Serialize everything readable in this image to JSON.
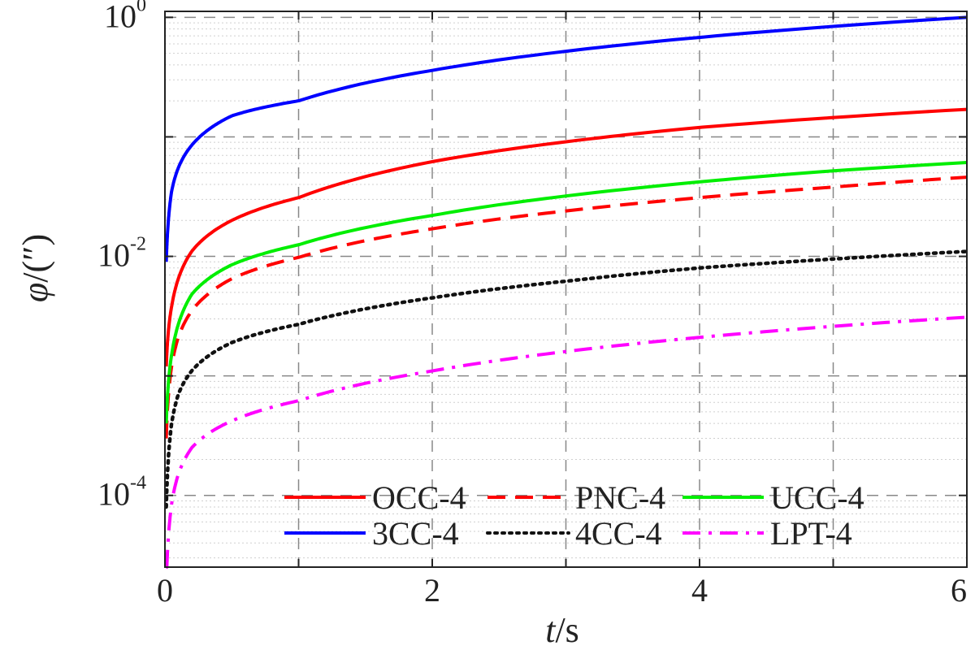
{
  "chart_data": {
    "type": "line",
    "xlabel_var": "t",
    "xlabel_unit": "/s",
    "ylabel_var": "φ",
    "ylabel_unit": "/(″)",
    "xlim": [
      0,
      6
    ],
    "ylim_log10": [
      -4.6,
      0.05
    ],
    "y_scale": "log",
    "grid": true,
    "legend_position": "bottom",
    "x_ticks": [
      "0",
      "2",
      "4",
      "6"
    ],
    "y_ticks": [
      {
        "base": "10",
        "exp": "0"
      },
      {
        "base": "10",
        "exp": "-2"
      },
      {
        "base": "10",
        "exp": "-4"
      }
    ],
    "x": [
      0.01,
      0.05,
      0.1,
      0.2,
      0.5,
      1,
      2,
      3,
      4,
      5,
      6
    ],
    "series": [
      {
        "name": "OCC-4",
        "color": "#ff0000",
        "dash": "solid",
        "values": [
          0.0012,
          0.0038,
          0.0065,
          0.011,
          0.02,
          0.031,
          0.062,
          0.091,
          0.12,
          0.145,
          0.17
        ]
      },
      {
        "name": "PNC-4",
        "color": "#ff0000",
        "dash": "dashed",
        "values": [
          0.0003,
          0.0012,
          0.0021,
          0.0035,
          0.0065,
          0.0098,
          0.017,
          0.024,
          0.031,
          0.038,
          0.046
        ]
      },
      {
        "name": "UCC-4",
        "color": "#00ee00",
        "dash": "solid",
        "values": [
          0.0004,
          0.0015,
          0.0027,
          0.0048,
          0.0085,
          0.0125,
          0.022,
          0.032,
          0.042,
          0.052,
          0.061
        ]
      },
      {
        "name": "3CC-4",
        "color": "#0000ff",
        "dash": "solid",
        "values": [
          0.009,
          0.035,
          0.055,
          0.085,
          0.15,
          0.2,
          0.36,
          0.52,
          0.68,
          0.84,
          1.0
        ]
      },
      {
        "name": "4CC-4",
        "color": "#111111",
        "dash": "dotted",
        "values": [
          8e-05,
          0.0004,
          0.0007,
          0.0011,
          0.0019,
          0.0027,
          0.0045,
          0.0062,
          0.008,
          0.0095,
          0.011
        ]
      },
      {
        "name": "LPT-4",
        "color": "#ff00ff",
        "dash": "dashdot",
        "values": [
          1.8e-05,
          8.5e-05,
          0.00015,
          0.00025,
          0.00042,
          0.00062,
          0.0011,
          0.0016,
          0.0021,
          0.0026,
          0.0031
        ]
      }
    ]
  }
}
